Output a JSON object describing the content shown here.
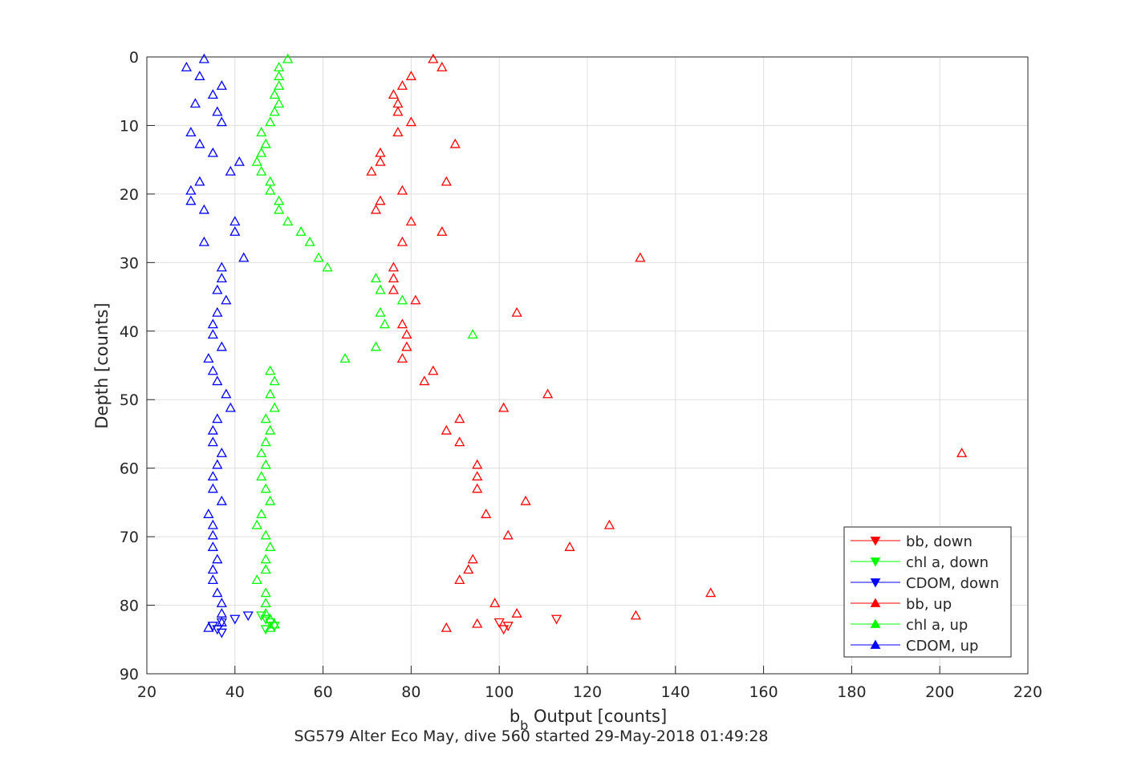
{
  "chart_data": {
    "type": "scatter",
    "title": "SG579 Alter Eco May, dive 560 started 29-May-2018 01:49:28",
    "xlabel_main": "b",
    "xlabel_sub": "b",
    "xlabel_rest": " Output [counts]",
    "ylabel": "Depth [counts]",
    "xlim": [
      20,
      220
    ],
    "ylim": [
      0,
      90
    ],
    "y_reversed": true,
    "grid": true,
    "legend_position": "bottom-right",
    "xticks": [
      "20",
      "40",
      "60",
      "80",
      "100",
      "120",
      "140",
      "160",
      "180",
      "200",
      "220"
    ],
    "yticks": [
      "0",
      "10",
      "20",
      "30",
      "40",
      "50",
      "60",
      "70",
      "80",
      "90"
    ],
    "series": [
      {
        "name": "bb, down",
        "color": "#ff0000",
        "marker": "triangle-down",
        "points": [
          [
            113,
            82
          ],
          [
            100,
            82.5
          ],
          [
            102,
            83
          ],
          [
            101,
            83.5
          ]
        ]
      },
      {
        "name": "chl a, down",
        "color": "#00ff00",
        "marker": "triangle-down",
        "points": [
          [
            46,
            81.5
          ],
          [
            47,
            82
          ],
          [
            48,
            82.5
          ],
          [
            49,
            83
          ],
          [
            47,
            83.5
          ]
        ]
      },
      {
        "name": "CDOM, down",
        "color": "#0000ff",
        "marker": "triangle-down",
        "points": [
          [
            43,
            81.5
          ],
          [
            40,
            82
          ],
          [
            37,
            82.5
          ],
          [
            35,
            83
          ],
          [
            36,
            83.5
          ],
          [
            37,
            84
          ]
        ]
      },
      {
        "name": "bb, up",
        "color": "#ff0000",
        "marker": "triangle-up",
        "points": [
          [
            85,
            0.3
          ],
          [
            87,
            1.5
          ],
          [
            80,
            2.8
          ],
          [
            78,
            4.2
          ],
          [
            76,
            5.5
          ],
          [
            77,
            6.8
          ],
          [
            77,
            8
          ],
          [
            80,
            9.5
          ],
          [
            77,
            11
          ],
          [
            90,
            12.7
          ],
          [
            73,
            14
          ],
          [
            73,
            15.3
          ],
          [
            71,
            16.7
          ],
          [
            88,
            18.2
          ],
          [
            78,
            19.5
          ],
          [
            73,
            21
          ],
          [
            72,
            22.3
          ],
          [
            80,
            24
          ],
          [
            87,
            25.5
          ],
          [
            78,
            27
          ],
          [
            132,
            29.3
          ],
          [
            76,
            30.7
          ],
          [
            76,
            32.3
          ],
          [
            76,
            34
          ],
          [
            81,
            35.5
          ],
          [
            104,
            37.3
          ],
          [
            78,
            39
          ],
          [
            79,
            40.5
          ],
          [
            79,
            42.3
          ],
          [
            78,
            44
          ],
          [
            85,
            45.8
          ],
          [
            83,
            47.3
          ],
          [
            111,
            49.2
          ],
          [
            101,
            51.2
          ],
          [
            91,
            52.8
          ],
          [
            88,
            54.5
          ],
          [
            91,
            56.2
          ],
          [
            205,
            57.8
          ],
          [
            95,
            59.5
          ],
          [
            95,
            61.2
          ],
          [
            95,
            63
          ],
          [
            106,
            64.8
          ],
          [
            97,
            66.7
          ],
          [
            125,
            68.3
          ],
          [
            102,
            69.8
          ],
          [
            116,
            71.5
          ],
          [
            94,
            73.3
          ],
          [
            93,
            74.8
          ],
          [
            91,
            76.3
          ],
          [
            148,
            78.2
          ],
          [
            99,
            79.7
          ],
          [
            104,
            81.2
          ],
          [
            131,
            81.5
          ],
          [
            95,
            82.7
          ],
          [
            88,
            83.3
          ]
        ]
      },
      {
        "name": "chl a, up",
        "color": "#00ff00",
        "marker": "triangle-up",
        "points": [
          [
            52,
            0.3
          ],
          [
            50,
            1.5
          ],
          [
            50,
            2.8
          ],
          [
            50,
            4.2
          ],
          [
            49,
            5.5
          ],
          [
            50,
            6.8
          ],
          [
            49,
            8
          ],
          [
            48,
            9.5
          ],
          [
            46,
            11
          ],
          [
            47,
            12.7
          ],
          [
            46,
            14
          ],
          [
            45,
            15.3
          ],
          [
            46,
            16.7
          ],
          [
            48,
            18.2
          ],
          [
            48,
            19.5
          ],
          [
            50,
            21
          ],
          [
            50,
            22.3
          ],
          [
            52,
            24
          ],
          [
            55,
            25.5
          ],
          [
            57,
            27
          ],
          [
            59,
            29.3
          ],
          [
            61,
            30.7
          ],
          [
            72,
            32.3
          ],
          [
            73,
            34
          ],
          [
            78,
            35.5
          ],
          [
            73,
            37.3
          ],
          [
            74,
            39
          ],
          [
            94,
            40.5
          ],
          [
            72,
            42.3
          ],
          [
            65,
            44
          ],
          [
            48,
            45.8
          ],
          [
            49,
            47.3
          ],
          [
            48,
            49.2
          ],
          [
            49,
            51.2
          ],
          [
            47,
            52.8
          ],
          [
            48,
            54.5
          ],
          [
            47,
            56.2
          ],
          [
            46,
            57.8
          ],
          [
            47,
            59.5
          ],
          [
            46,
            61.2
          ],
          [
            47,
            63
          ],
          [
            48,
            64.8
          ],
          [
            46,
            66.7
          ],
          [
            45,
            68.3
          ],
          [
            47,
            69.8
          ],
          [
            48,
            71.5
          ],
          [
            47,
            73.3
          ],
          [
            47,
            74.8
          ],
          [
            45,
            76.3
          ],
          [
            47,
            78.2
          ],
          [
            47,
            79.7
          ],
          [
            47,
            81.2
          ],
          [
            48,
            82
          ],
          [
            49,
            82.8
          ],
          [
            48,
            83.3
          ]
        ]
      },
      {
        "name": "CDOM, up",
        "color": "#0000ff",
        "marker": "triangle-up",
        "points": [
          [
            33,
            0.3
          ],
          [
            29,
            1.5
          ],
          [
            32,
            2.8
          ],
          [
            37,
            4.2
          ],
          [
            35,
            5.5
          ],
          [
            31,
            6.8
          ],
          [
            36,
            8
          ],
          [
            37,
            9.5
          ],
          [
            30,
            11
          ],
          [
            32,
            12.7
          ],
          [
            35,
            14
          ],
          [
            41,
            15.3
          ],
          [
            39,
            16.7
          ],
          [
            32,
            18.2
          ],
          [
            30,
            19.5
          ],
          [
            30,
            21
          ],
          [
            33,
            22.3
          ],
          [
            40,
            24
          ],
          [
            40,
            25.5
          ],
          [
            33,
            27
          ],
          [
            42,
            29.3
          ],
          [
            37,
            30.7
          ],
          [
            37,
            32.3
          ],
          [
            36,
            34
          ],
          [
            38,
            35.5
          ],
          [
            36,
            37.3
          ],
          [
            35,
            39
          ],
          [
            35,
            40.5
          ],
          [
            37,
            42.3
          ],
          [
            34,
            44
          ],
          [
            35,
            45.8
          ],
          [
            36,
            47.3
          ],
          [
            38,
            49.2
          ],
          [
            39,
            51.2
          ],
          [
            36,
            52.8
          ],
          [
            35,
            54.5
          ],
          [
            35,
            56.2
          ],
          [
            37,
            57.8
          ],
          [
            36,
            59.5
          ],
          [
            35,
            61.2
          ],
          [
            35,
            63
          ],
          [
            37,
            64.8
          ],
          [
            34,
            66.7
          ],
          [
            35,
            68.3
          ],
          [
            35,
            69.8
          ],
          [
            35,
            71.5
          ],
          [
            36,
            73.3
          ],
          [
            35,
            74.8
          ],
          [
            35,
            76.3
          ],
          [
            36,
            78.2
          ],
          [
            37,
            79.7
          ],
          [
            37,
            81.2
          ],
          [
            37,
            82.5
          ],
          [
            34,
            83.3
          ]
        ]
      }
    ]
  }
}
